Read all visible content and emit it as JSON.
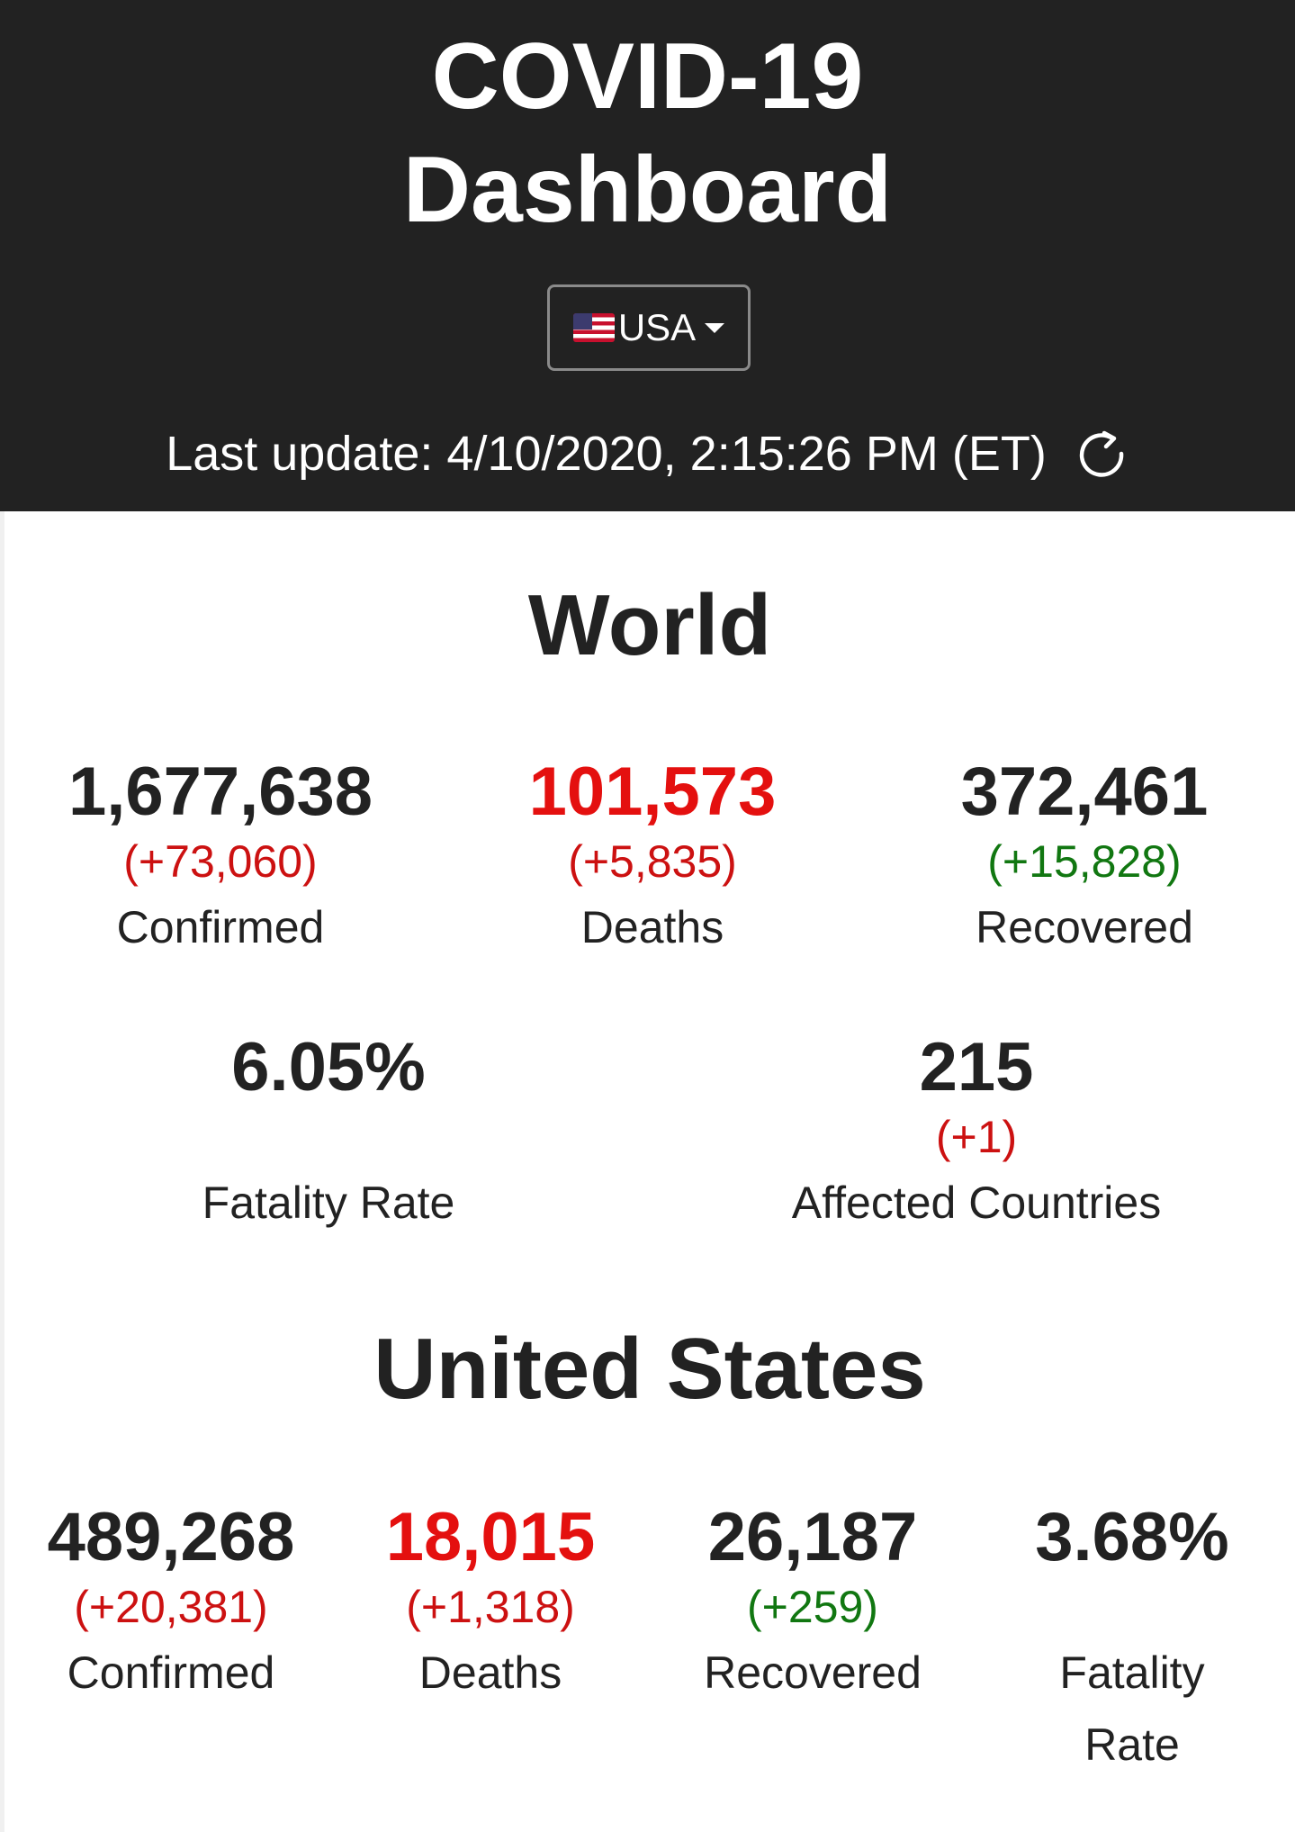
{
  "header": {
    "title_line1": "COVID-19",
    "title_line2": "Dashboard",
    "country_selector": {
      "selected": "USA",
      "flag": "us-flag-icon"
    },
    "last_update": "Last update: 4/10/2020, 2:15:26 PM (ET)",
    "refresh_icon": "refresh-icon"
  },
  "world": {
    "title": "World",
    "confirmed": {
      "value": "1,677,638",
      "delta": "(+73,060)",
      "label": "Confirmed"
    },
    "deaths": {
      "value": "101,573",
      "delta": "(+5,835)",
      "label": "Deaths"
    },
    "recovered": {
      "value": "372,461",
      "delta": "(+15,828)",
      "label": "Recovered"
    },
    "fatality_rate": {
      "value": "6.05%",
      "label": "Fatality Rate"
    },
    "affected_countries": {
      "value": "215",
      "delta": "(+1)",
      "label": "Affected Countries"
    }
  },
  "us": {
    "title": "United States",
    "confirmed": {
      "value": "489,268",
      "delta": "(+20,381)",
      "label": "Confirmed"
    },
    "deaths": {
      "value": "18,015",
      "delta": "(+1,318)",
      "label": "Deaths"
    },
    "recovered": {
      "value": "26,187",
      "delta": "(+259)",
      "label": "Recovered"
    },
    "fatality_rate": {
      "value": "3.68%",
      "label_line1": "Fatality",
      "label_line2": "Rate"
    }
  },
  "colors": {
    "header_bg": "#222222",
    "death_red": "#e4100f",
    "delta_red": "#cc1111",
    "recovered_green": "#117711"
  }
}
